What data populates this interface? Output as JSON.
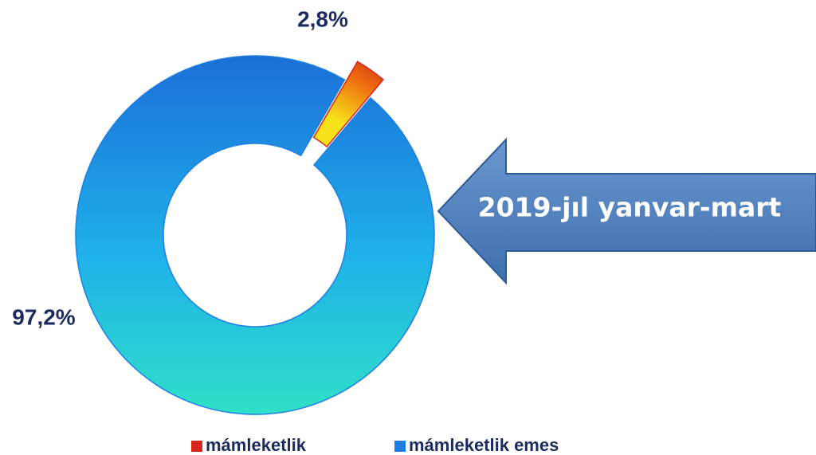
{
  "chart_data": {
    "type": "pie",
    "categories": [
      "mámleketlik",
      "mámleketlik emes"
    ],
    "values": [
      2.8,
      97.2
    ],
    "value_labels": [
      "2,8%",
      "97,2%"
    ],
    "colors": [
      "#d9261c",
      "#1f7fe0"
    ],
    "annotation": "2019-jıl yanvar-mart"
  }
}
